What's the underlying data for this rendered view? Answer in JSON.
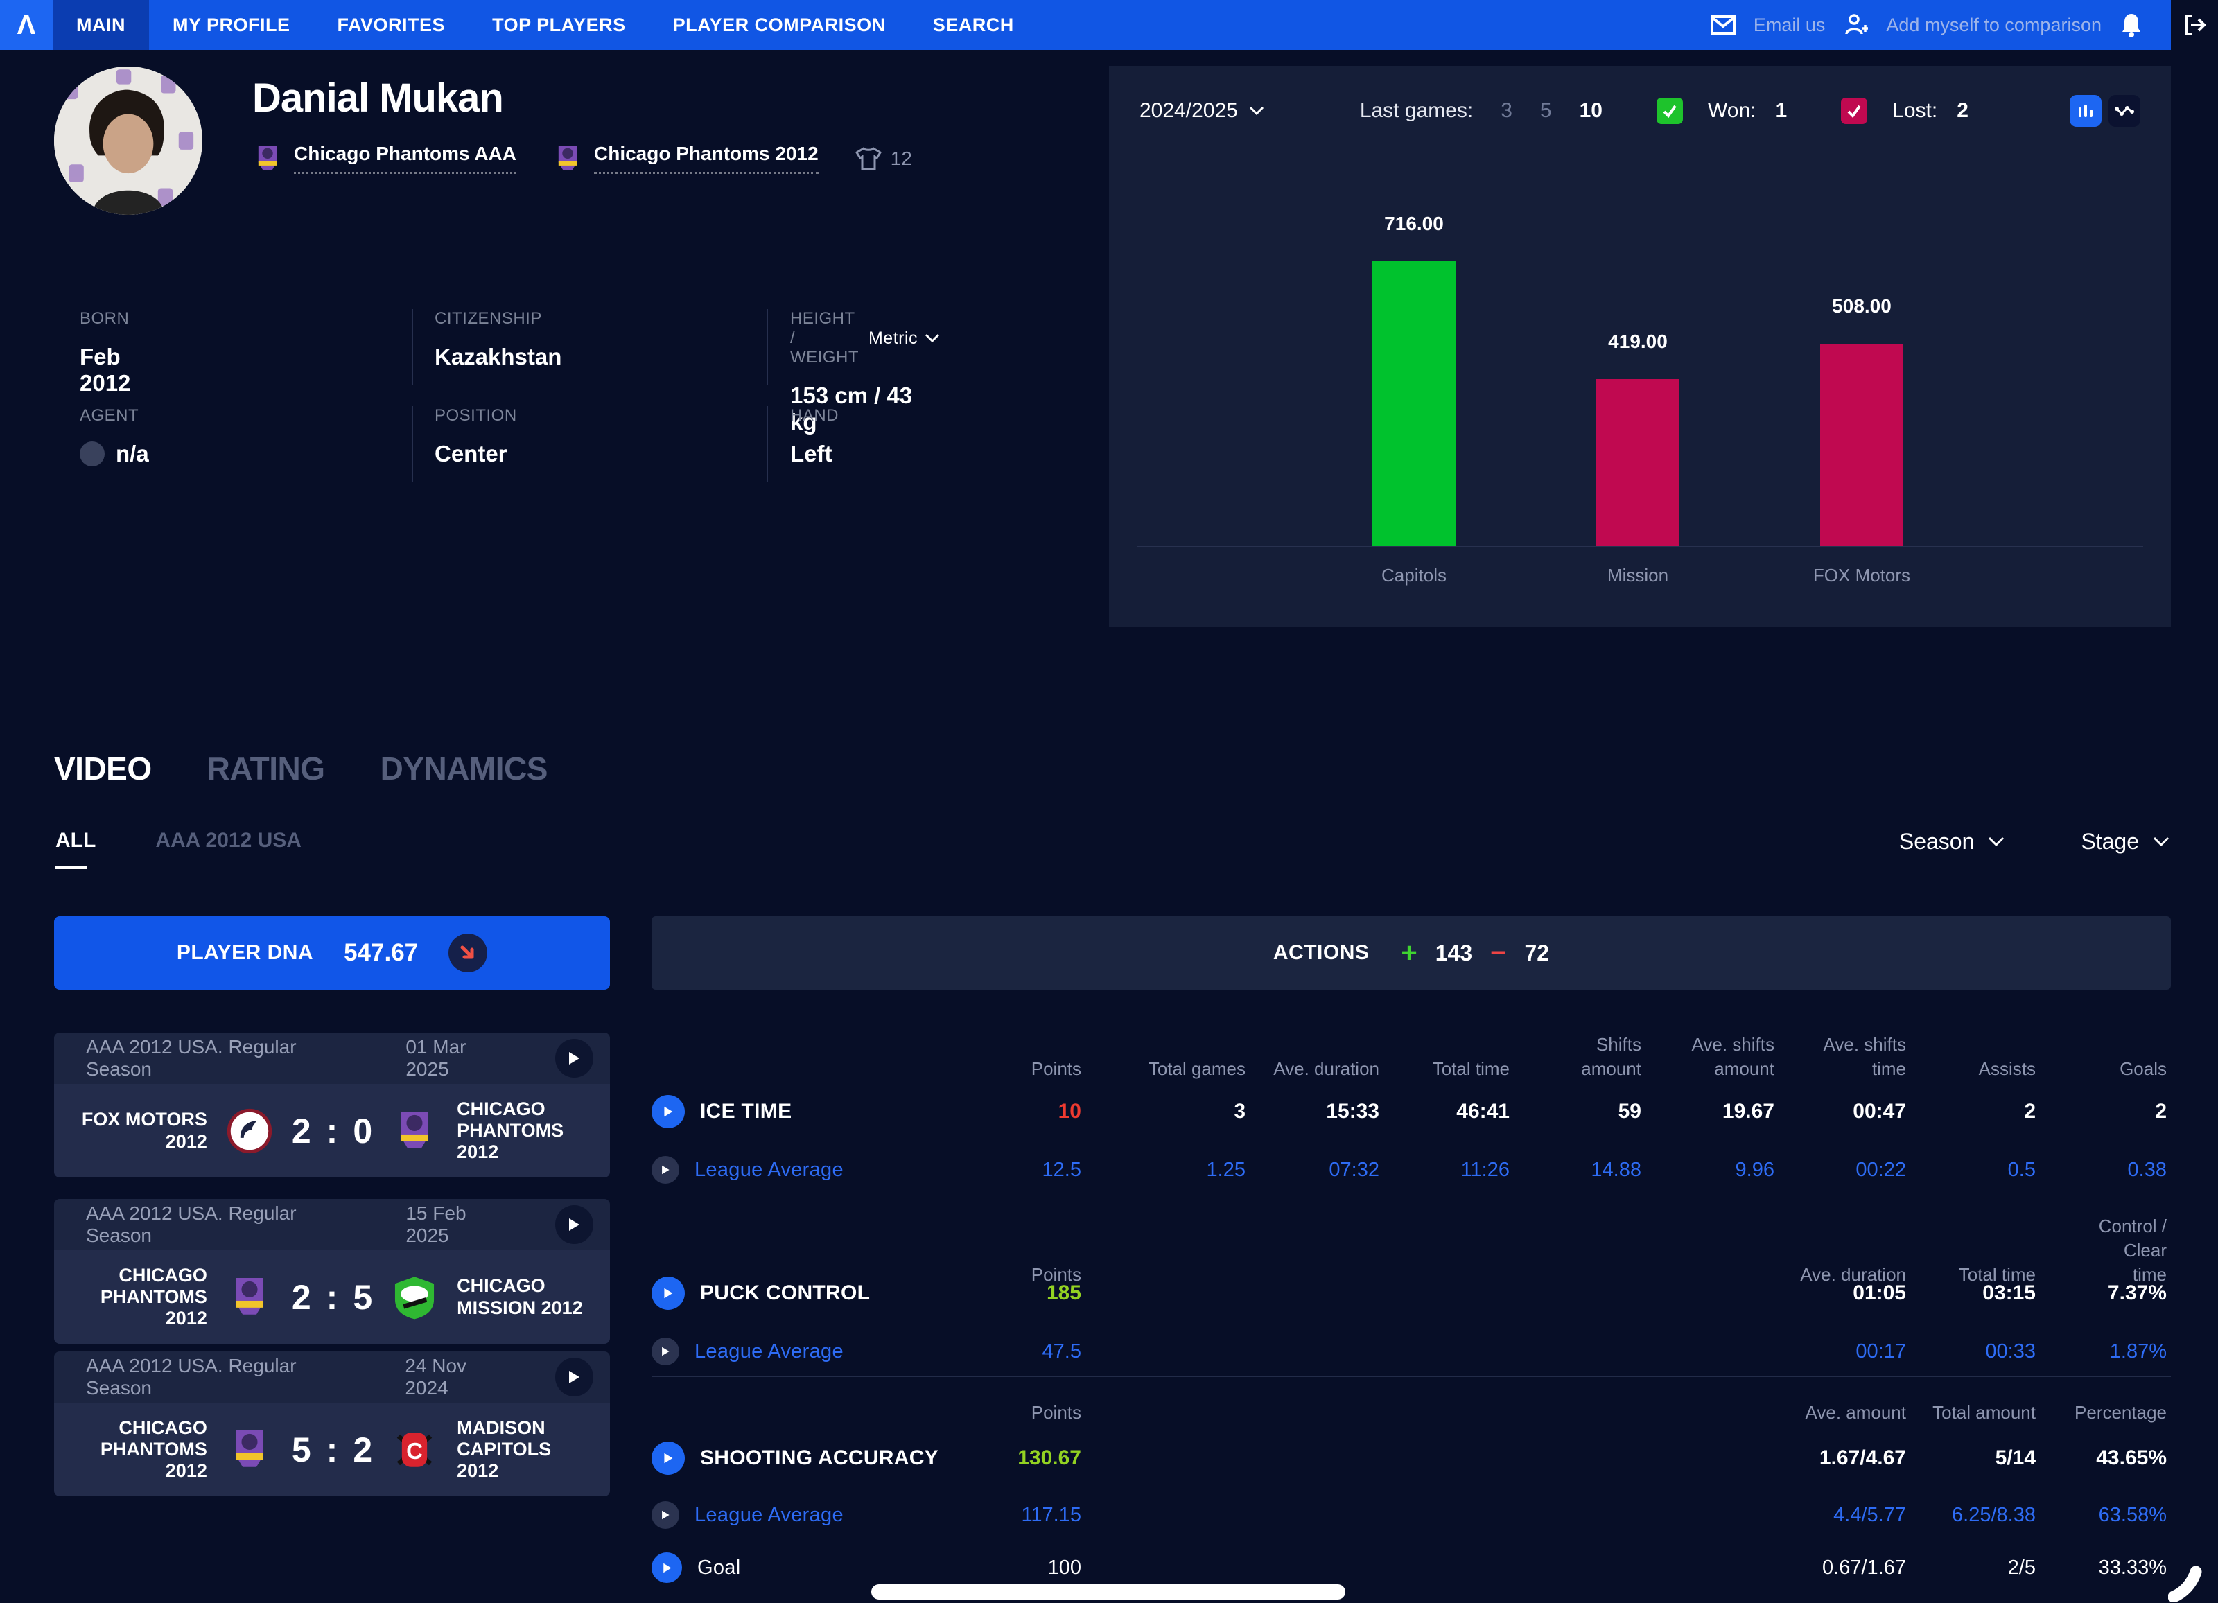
{
  "nav": {
    "logo_glyph": "Λ",
    "items": [
      {
        "label": "MAIN"
      },
      {
        "label": "MY PROFILE"
      },
      {
        "label": "FAVORITES"
      },
      {
        "label": "TOP PLAYERS"
      },
      {
        "label": "PLAYER COMPARISON"
      },
      {
        "label": "SEARCH"
      }
    ],
    "email_us": "Email us",
    "add_to_comparison": "Add myself to comparison"
  },
  "player": {
    "name": "Danial Mukan",
    "teams": [
      {
        "name": "Chicago Phantoms AAA"
      },
      {
        "name": "Chicago Phantoms 2012",
        "jersey_number": "12"
      }
    ],
    "info": {
      "born_label": "BORN",
      "born": "Feb 2012",
      "citizenship_label": "CITIZENSHIP",
      "citizenship": "Kazakhstan",
      "height_weight_label": "HEIGHT / WEIGHT",
      "units": "Metric",
      "height_weight": "153 cm / 43 kg",
      "agent_label": "AGENT",
      "agent": "n/a",
      "position_label": "POSITION",
      "position": "Center",
      "hand_label": "HAND",
      "hand": "Left"
    }
  },
  "chart_panel": {
    "season": "2024/2025",
    "last_games_label": "Last games:",
    "last_games_options": [
      "3",
      "5",
      "10"
    ],
    "selected_last_games": "10",
    "won_label": "Won:",
    "won": "1",
    "won_color": "#1ec32c",
    "lost_label": "Lost:",
    "lost": "2",
    "lost_color": "#c00950"
  },
  "chart_data": {
    "type": "bar",
    "categories": [
      "Capitols",
      "Mission",
      "FOX Motors"
    ],
    "values": [
      716,
      419,
      508
    ],
    "value_labels": [
      "716.00",
      "419.00",
      "508.00"
    ],
    "colors": [
      "#00c22d",
      "#c00950",
      "#c00950"
    ],
    "title": "",
    "xlabel": "",
    "ylabel": "",
    "ylim": [
      0,
      780
    ],
    "grid": false,
    "legend": false
  },
  "tabs": {
    "main": [
      {
        "label": "VIDEO"
      },
      {
        "label": "RATING"
      },
      {
        "label": "DYNAMICS"
      }
    ],
    "sub": [
      {
        "label": "ALL"
      },
      {
        "label": "AAA 2012 USA"
      }
    ],
    "season_filter": "Season",
    "stage_filter": "Stage"
  },
  "player_dna": {
    "label": "PLAYER DNA",
    "value": "547.67"
  },
  "games": {
    "separator": ":",
    "items": [
      {
        "league": "AAA 2012 USA. Regular Season",
        "date": "01 Mar 2025",
        "home": {
          "name": "FOX MOTORS 2012",
          "score": "2"
        },
        "away": {
          "name": "CHICAGO PHANTOMS 2012",
          "score": "0"
        }
      },
      {
        "league": "AAA 2012 USA. Regular Season",
        "date": "15 Feb 2025",
        "home": {
          "name": "CHICAGO PHANTOMS 2012",
          "score": "2"
        },
        "away": {
          "name": "CHICAGO MISSION 2012",
          "score": "5"
        }
      },
      {
        "league": "AAA 2012 USA. Regular Season",
        "date": "24 Nov 2024",
        "home": {
          "name": "CHICAGO PHANTOMS 2012",
          "score": "5"
        },
        "away": {
          "name": "MADISON CAPITOLS 2012",
          "score": "2"
        }
      }
    ]
  },
  "actions": {
    "label": "ACTIONS",
    "plus": "143",
    "minus": "72"
  },
  "stats": {
    "league_average_label": "League Average",
    "ice_time": {
      "headers": [
        "Points",
        "Total games",
        "Ave. duration",
        "Total time",
        "Shifts amount",
        "Ave. shifts amount",
        "Ave. shifts time",
        "Assists",
        "Goals"
      ],
      "label": "ICE TIME",
      "values": [
        "10",
        "3",
        "15:33",
        "46:41",
        "59",
        "19.67",
        "00:47",
        "2",
        "2"
      ],
      "league_values": [
        "12.5",
        "1.25",
        "07:32",
        "11:26",
        "14.88",
        "9.96",
        "00:22",
        "0.5",
        "0.38"
      ]
    },
    "puck_control": {
      "headers": [
        "Points",
        "Ave. duration",
        "Total time",
        "Control / Clear time"
      ],
      "label": "PUCK CONTROL",
      "values": [
        "185",
        "01:05",
        "03:15",
        "7.37%"
      ],
      "league_values": [
        "47.5",
        "00:17",
        "00:33",
        "1.87%"
      ]
    },
    "shooting_accuracy": {
      "headers": [
        "Points",
        "Ave. amount",
        "Total amount",
        "Percentage"
      ],
      "label": "SHOOTING ACCURACY",
      "values": [
        "130.67",
        "1.67/4.67",
        "5/14",
        "43.65%"
      ],
      "league_values": [
        "117.15",
        "4.4/5.77",
        "6.25/8.38",
        "63.58%"
      ],
      "goal_label": "Goal",
      "goal_values": [
        "100",
        "0.67/1.67",
        "2/5",
        "33.33%"
      ]
    }
  }
}
